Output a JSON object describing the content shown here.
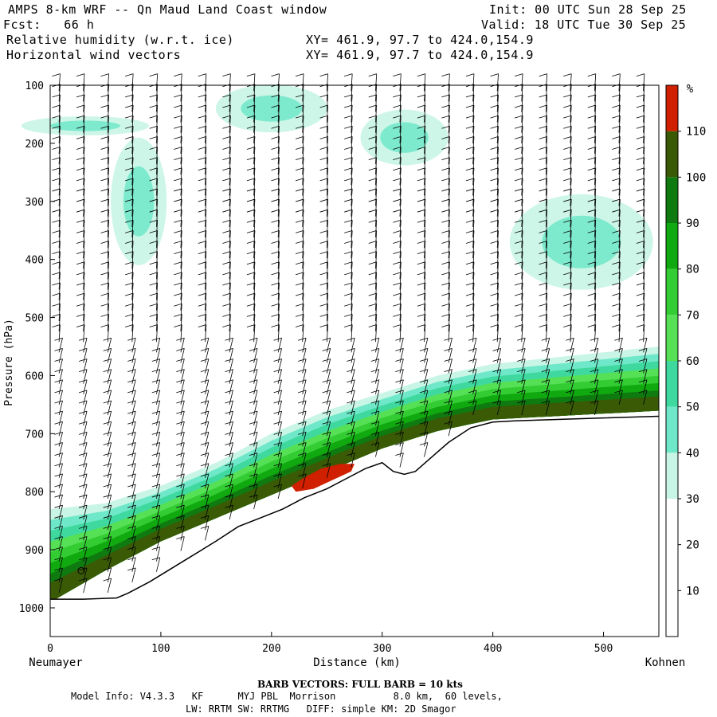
{
  "header": {
    "title": "AMPS 8-km WRF -- Qn Maud Land Coast window",
    "init": "Init: 00 UTC Sun 28 Sep 25",
    "fcst": "Fcst:   66 h",
    "valid": "Valid: 18 UTC Tue 30 Sep 25",
    "field1": "Relative humidity (w.r.t. ice)",
    "field2": "Horizontal wind vectors",
    "xy1": "XY= 461.9, 97.7 to 424.0,154.9",
    "xy2": "XY= 461.9, 97.7 to 424.0,154.9"
  },
  "footer": {
    "barb_note": "BARB VECTORS:  FULL BARB = 10 kts",
    "model_info": "Model Info: V4.3.3   KF      MYJ PBL  Morrison          8.0 km,  60 levels,",
    "model_info2": "LW: RRTM SW: RRTMG   DIFF: simple KM: 2D Smagor"
  },
  "chart_data": {
    "type": "heatmap",
    "title": "Relative humidity (w.r.t. ice)",
    "xlabel": "Distance (km)",
    "ylabel": "Pressure (hPa)",
    "x_left_label": "Neumayer",
    "x_right_label": "Kohnen",
    "xlim": [
      0,
      550
    ],
    "ylim": [
      1050,
      100
    ],
    "x_ticks": [
      0,
      100,
      200,
      300,
      400,
      500
    ],
    "y_ticks": [
      100,
      200,
      300,
      400,
      500,
      600,
      700,
      800,
      900,
      1000
    ],
    "colorbar": {
      "unit": "%",
      "levels": [
        10,
        20,
        30,
        40,
        50,
        60,
        70,
        80,
        90,
        100,
        110
      ],
      "colors": [
        "#ffffff",
        "#ffffff",
        "#ffffff",
        "#c8f5e6",
        "#6ee8c8",
        "#3fd9a0",
        "#55e055",
        "#33cc33",
        "#10aa10",
        "#0f7a10",
        "#3a5a06",
        "#d02000"
      ]
    },
    "terrain": {
      "x": [
        0,
        30,
        60,
        70,
        90,
        120,
        150,
        170,
        190,
        210,
        230,
        250,
        270,
        285,
        300,
        310,
        320,
        330,
        345,
        360,
        380,
        400,
        420,
        450,
        500,
        550
      ],
      "p": [
        985,
        985,
        983,
        975,
        955,
        920,
        885,
        860,
        845,
        830,
        810,
        795,
        775,
        760,
        750,
        765,
        770,
        765,
        740,
        715,
        690,
        680,
        678,
        676,
        673,
        670
      ]
    },
    "moist_layer": {
      "x": [
        0,
        50,
        100,
        150,
        200,
        250,
        300,
        350,
        400,
        450,
        500,
        550
      ],
      "bottom_p": [
        985,
        930,
        880,
        840,
        800,
        760,
        720,
        690,
        670,
        665,
        660,
        655
      ],
      "top_p": [
        830,
        820,
        790,
        750,
        700,
        660,
        630,
        600,
        580,
        570,
        560,
        550
      ]
    },
    "annotations": [
      "Pressure (hPa)",
      "Distance (km)",
      "Neumayer",
      "Kohnen",
      "%"
    ]
  }
}
